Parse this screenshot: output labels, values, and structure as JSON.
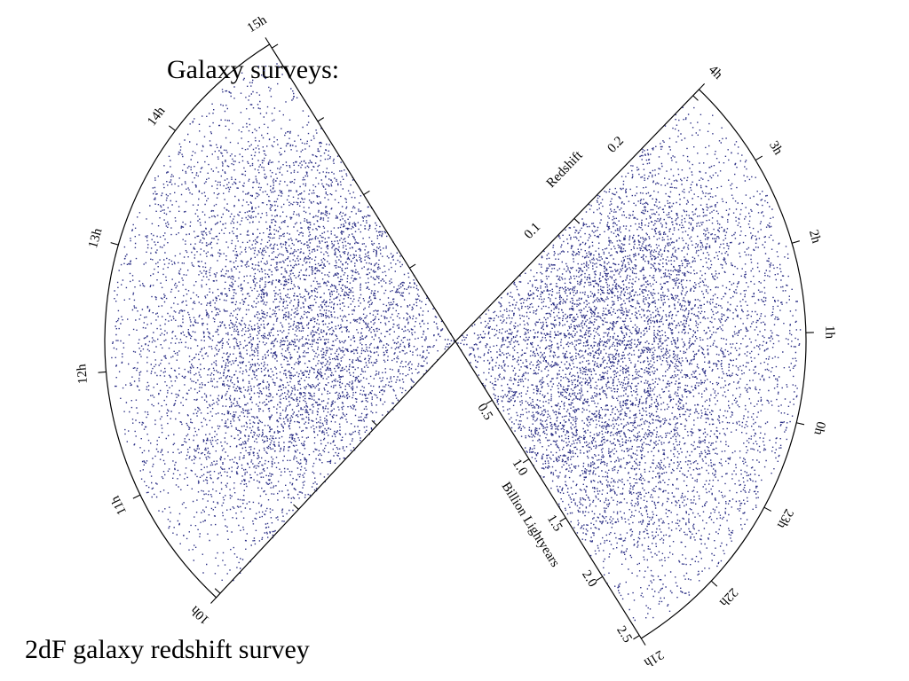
{
  "slide": {
    "title": "Galaxy surveys:",
    "caption": "2dF galaxy redshift survey"
  },
  "figure": {
    "dot_color": "#2b2f85",
    "right_wedge_hour_labels": [
      "4h",
      "3h",
      "2h",
      "1h",
      "0h",
      "23h",
      "22h",
      "21h"
    ],
    "left_wedge_hour_labels": [
      "10h",
      "11h",
      "12h",
      "13h",
      "14h",
      "15h"
    ],
    "redshift_axis": {
      "label": "Redshift",
      "ticks": [
        "0.1",
        "0.2"
      ]
    },
    "distance_axis": {
      "label": "Billion Lightyears",
      "ticks": [
        "0.5",
        "1.0",
        "1.5",
        "2.0",
        "2.5"
      ]
    }
  }
}
